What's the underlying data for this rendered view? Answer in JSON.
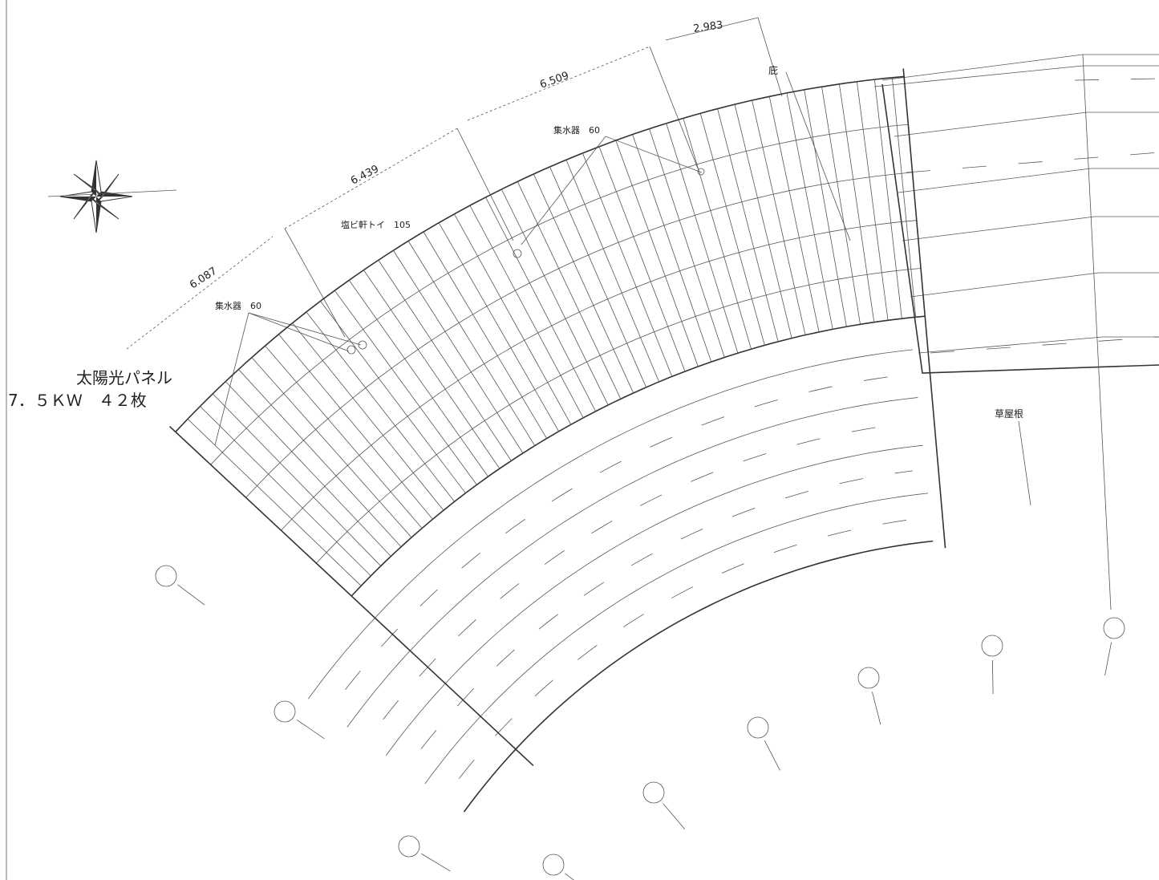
{
  "dimensions": [
    "6.087",
    "6.439",
    "6.509",
    "2.983"
  ],
  "labels": {
    "collector_left": "集水器　60",
    "collector_right": "集水器　60",
    "gutter": "塩ビ軒トイ　105",
    "eave": "庇",
    "green_roof": "草屋根"
  },
  "panel_note": {
    "title": "太陽光パネル",
    "spec": "7．５ＫＷ　４２枚"
  }
}
